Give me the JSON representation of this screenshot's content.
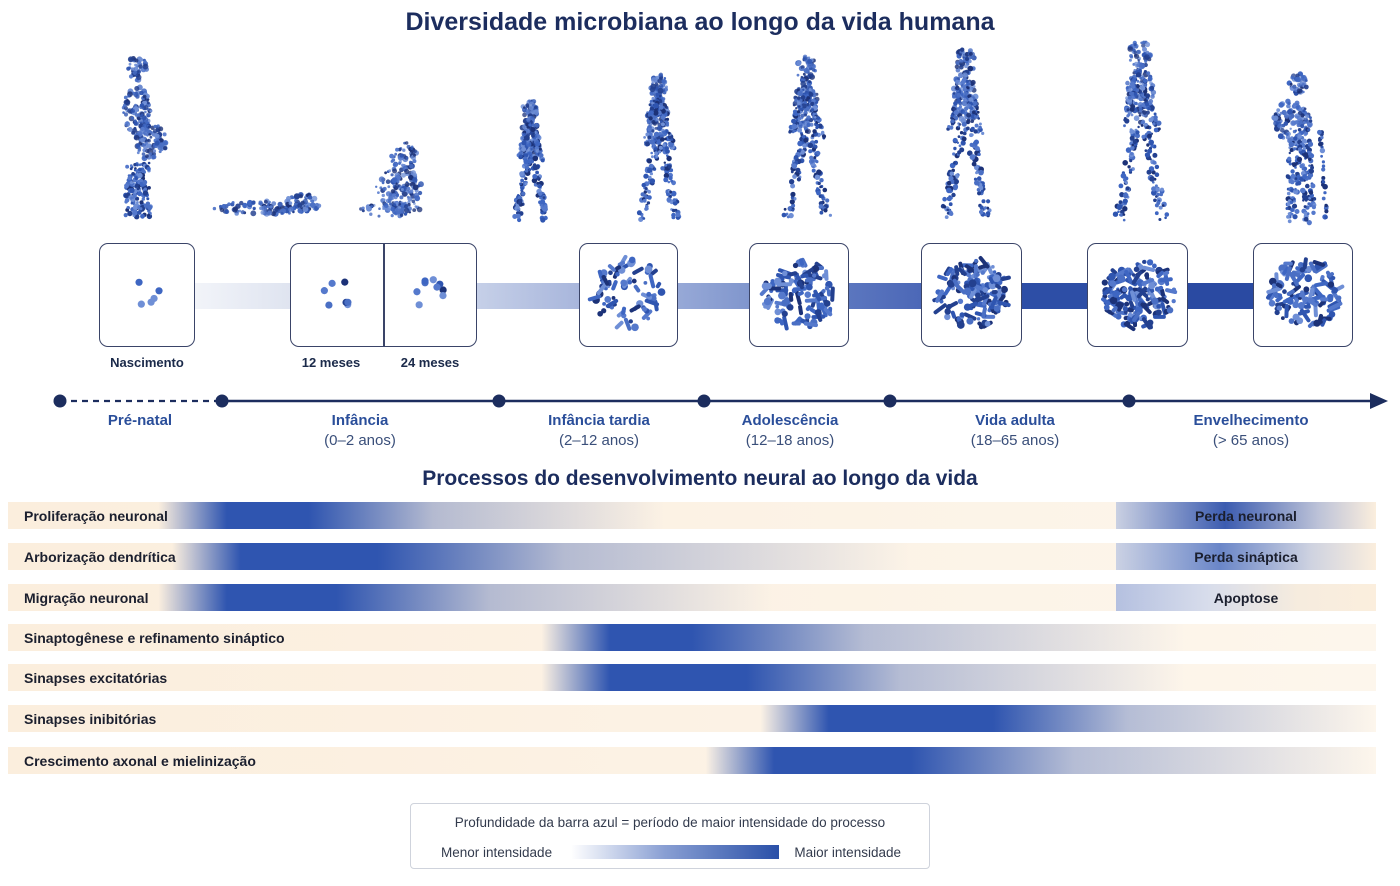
{
  "title": "Diversidade microbiana ao longo da vida humana",
  "subtitle": "Processos do desenvolvimento neural ao longo da vida",
  "colors": {
    "accent": "#2a50a8",
    "dark_navy": "#1c2d5e",
    "row_bg": "#fbeedd"
  },
  "figures": [
    "pregnant-woman-silhouette",
    "newborn-lying-silhouette",
    "sitting-baby-silhouette",
    "pointing-child-silhouette",
    "walking-child-silhouette",
    "walking-teen-silhouette",
    "walking-adult-silhouette",
    "walking-adult-silhouette",
    "elderly-with-cane-silhouette"
  ],
  "microbe_boxes": [
    {
      "label": "Nascimento"
    },
    {
      "label": "12 meses"
    },
    {
      "label": "24 meses"
    },
    {
      "label": ""
    },
    {
      "label": ""
    },
    {
      "label": ""
    },
    {
      "label": ""
    },
    {
      "label": ""
    }
  ],
  "stages": [
    {
      "name": "Pré-natal",
      "range": ""
    },
    {
      "name": "Infância",
      "range": "(0–2 anos)"
    },
    {
      "name": "Infância tardia",
      "range": "(2–12 anos)"
    },
    {
      "name": "Adolescência",
      "range": "(12–18 anos)"
    },
    {
      "name": "Vida adulta",
      "range": "(18–65 anos)"
    },
    {
      "name": "Envelhecimento",
      "range": "(> 65 anos)"
    }
  ],
  "processes": [
    {
      "label": "Proliferação neuronal",
      "peak_start": 0.16,
      "peak_end": 0.22,
      "fade_end": 0.48
    },
    {
      "label": "Arborização dendrítica",
      "peak_start": 0.17,
      "peak_end": 0.27,
      "fade_end": 0.66
    },
    {
      "label": "Migração neuronal",
      "peak_start": 0.16,
      "peak_end": 0.24,
      "fade_end": 0.56
    },
    {
      "label": "Sinaptogênese e refinamento sináptico",
      "peak_start": 0.44,
      "peak_end": 0.5,
      "fade_end": 0.86
    },
    {
      "label": "Sinapses excitatórias",
      "peak_start": 0.44,
      "peak_end": 0.54,
      "fade_end": 0.86
    },
    {
      "label": "Sinapses inibitórias",
      "peak_start": 0.6,
      "peak_end": 0.72,
      "fade_end": 1.0
    },
    {
      "label": "Crescimento axonal e mielinização",
      "peak_start": 0.56,
      "peak_end": 0.66,
      "fade_end": 1.0
    }
  ],
  "loss_processes": [
    {
      "label": "Perda neuronal"
    },
    {
      "label": "Perda sináptica"
    },
    {
      "label": "Apoptose"
    }
  ],
  "legend": {
    "caption": "Profundidade da barra azul = período de maior intensidade do processo",
    "low": "Menor intensidade",
    "high": "Maior intensidade"
  }
}
